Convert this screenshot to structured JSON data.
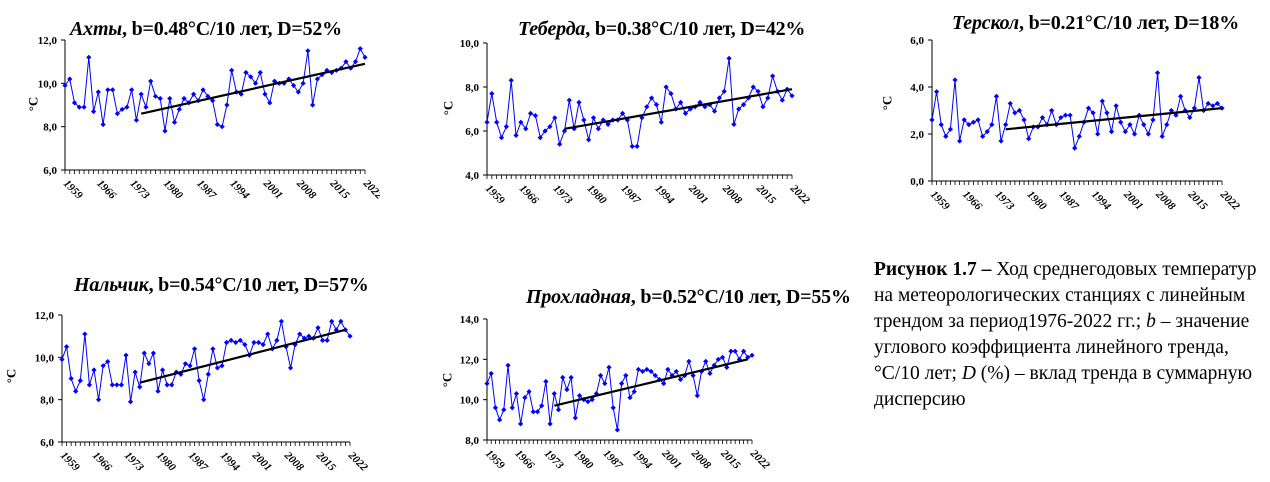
{
  "chart_data": [
    {
      "type": "line",
      "station": "Ахты",
      "b_label": "b=0.48°C/10 лет",
      "d_label": "D=52%",
      "ylabel": "°C",
      "yticks": [
        "6,0",
        "8,0",
        "10,0",
        "12,0"
      ],
      "ylim": [
        6,
        12
      ],
      "xticks": [
        "1959",
        "1966",
        "1973",
        "1980",
        "1987",
        "1994",
        "2001",
        "2008",
        "2015",
        "2022"
      ],
      "xlim": [
        1959,
        2022
      ],
      "series_color": "#0000ff",
      "trend_color": "#000000",
      "series": [
        {
          "values": [
            9.9,
            10.2,
            9.1,
            8.9,
            8.9,
            11.2,
            8.7,
            9.6,
            8.1,
            9.7,
            9.7,
            8.6,
            8.8,
            8.9,
            9.7,
            8.3,
            9.5,
            8.9,
            10.1,
            9.4,
            9.3,
            7.8,
            9.3,
            8.2,
            8.8,
            9.3,
            9.1,
            9.5,
            9.2,
            9.7,
            9.4,
            9.2,
            8.1,
            8.0,
            9.0,
            10.6,
            9.6,
            9.5,
            10.5,
            10.3,
            10.0,
            10.5,
            9.5,
            9.1,
            10.1,
            10.0,
            10.0,
            10.2,
            9.9,
            9.6,
            10.0,
            11.5,
            9.0,
            10.2,
            10.4,
            10.6,
            10.5,
            10.6,
            10.7,
            11.0,
            10.7,
            11.0,
            11.6,
            11.2
          ]
        }
      ],
      "trend": {
        "x": [
          1975,
          2022
        ],
        "y": [
          8.6,
          10.9
        ]
      }
    },
    {
      "type": "line",
      "station": "Теберда",
      "b_label": "b=0.38°C/10 лет",
      "d_label": "D=42%",
      "ylabel": "°C",
      "yticks": [
        "4,0",
        "6,0",
        "8,0",
        "10,0"
      ],
      "ylim": [
        4,
        10
      ],
      "xticks": [
        "1959",
        "1966",
        "1973",
        "1980",
        "1987",
        "1994",
        "2001",
        "2008",
        "2015",
        "2022"
      ],
      "xlim": [
        1959,
        2022
      ],
      "series_color": "#0000ff",
      "trend_color": "#000000",
      "series": [
        {
          "values": [
            6.4,
            7.7,
            6.4,
            5.7,
            6.2,
            8.3,
            5.8,
            6.4,
            6.1,
            6.8,
            6.7,
            5.7,
            6.0,
            6.2,
            6.6,
            5.4,
            6.0,
            7.4,
            6.1,
            7.3,
            6.5,
            5.6,
            6.6,
            6.1,
            6.5,
            6.3,
            6.5,
            6.5,
            6.8,
            6.5,
            5.3,
            5.3,
            6.6,
            7.1,
            7.5,
            7.2,
            6.4,
            8.0,
            7.7,
            7.0,
            7.3,
            6.8,
            7.0,
            7.1,
            7.3,
            7.1,
            7.2,
            6.9,
            7.5,
            7.8,
            9.3,
            6.3,
            7.0,
            7.2,
            7.5,
            8.0,
            7.8,
            7.1,
            7.5,
            8.5,
            7.8,
            7.4,
            7.9,
            7.6
          ]
        }
      ],
      "trend": {
        "x": [
          1975,
          2022
        ],
        "y": [
          6.1,
          7.9
        ]
      }
    },
    {
      "type": "line",
      "station": "Терскол",
      "b_label": "b=0.21°C/10 лет",
      "d_label": "D=18%",
      "ylabel": "°C",
      "yticks": [
        "0,0",
        "2,0",
        "4,0",
        "6,0"
      ],
      "ylim": [
        0,
        6
      ],
      "xticks": [
        "1959",
        "1966",
        "1973",
        "1980",
        "1987",
        "1994",
        "2001",
        "2008",
        "2015",
        "2022"
      ],
      "xlim": [
        1959,
        2022
      ],
      "series_color": "#0000ff",
      "trend_color": "#000000",
      "series": [
        {
          "values": [
            2.6,
            3.8,
            2.4,
            1.9,
            2.2,
            4.3,
            1.7,
            2.6,
            2.4,
            2.5,
            2.6,
            1.9,
            2.1,
            2.4,
            3.6,
            1.7,
            2.4,
            3.3,
            2.9,
            3.0,
            2.6,
            1.8,
            2.3,
            2.3,
            2.7,
            2.4,
            3.0,
            2.4,
            2.7,
            2.8,
            2.8,
            1.4,
            1.9,
            2.5,
            3.1,
            2.9,
            2.0,
            3.4,
            2.9,
            2.1,
            3.2,
            2.5,
            2.1,
            2.4,
            2.0,
            2.8,
            2.4,
            2.0,
            2.6,
            4.6,
            1.9,
            2.4,
            3.0,
            2.8,
            3.6,
            3.0,
            2.7,
            3.1,
            4.4,
            3.0,
            3.3,
            3.2,
            3.3,
            3.1
          ]
        }
      ],
      "trend": {
        "x": [
          1975,
          2022
        ],
        "y": [
          2.2,
          3.1
        ]
      }
    },
    {
      "type": "line",
      "station": "Нальчик",
      "b_label": "b=0.54°C/10 лет",
      "d_label": "D=57%",
      "ylabel": "°C",
      "yticks": [
        "6,0",
        "8,0",
        "10,0",
        "12,0"
      ],
      "ylim": [
        6,
        12
      ],
      "xticks": [
        "1959",
        "1966",
        "1973",
        "1980",
        "1987",
        "1994",
        "2001",
        "2008",
        "2015",
        "2022"
      ],
      "xlim": [
        1959,
        2022
      ],
      "series_color": "#0000ff",
      "trend_color": "#000000",
      "series": [
        {
          "values": [
            9.9,
            10.5,
            9.0,
            8.4,
            8.9,
            11.1,
            8.7,
            9.4,
            8.0,
            9.6,
            9.8,
            8.7,
            8.7,
            8.7,
            10.1,
            7.9,
            9.3,
            8.6,
            10.2,
            9.7,
            10.2,
            8.4,
            9.4,
            8.7,
            8.7,
            9.3,
            9.2,
            9.7,
            9.6,
            10.4,
            8.9,
            8.0,
            9.2,
            10.4,
            9.5,
            9.6,
            10.7,
            10.8,
            10.7,
            10.8,
            10.6,
            10.1,
            10.7,
            10.7,
            10.6,
            11.1,
            10.4,
            10.8,
            11.7,
            10.5,
            9.5,
            10.6,
            11.1,
            10.9,
            11.0,
            10.9,
            11.4,
            10.8,
            10.8,
            11.7,
            11.3,
            11.7,
            11.3,
            11.0
          ]
        }
      ],
      "trend": {
        "x": [
          1976,
          2021
        ],
        "y": [
          8.8,
          11.3
        ]
      }
    },
    {
      "type": "line",
      "station": "Прохладная",
      "b_label": "b=0.52°C/10 лет",
      "d_label": "D=55%",
      "ylabel": "°C",
      "yticks": [
        "8,0",
        "10,0",
        "12,0",
        "14,0"
      ],
      "ylim": [
        8,
        14
      ],
      "xticks": [
        "1959",
        "1966",
        "1973",
        "1980",
        "1987",
        "1994",
        "2001",
        "2008",
        "2015",
        "2022"
      ],
      "xlim": [
        1959,
        2022
      ],
      "series_color": "#0000ff",
      "trend_color": "#000000",
      "series": [
        {
          "values": [
            10.8,
            11.3,
            9.6,
            9.0,
            9.5,
            11.7,
            9.6,
            10.3,
            8.8,
            10.1,
            10.4,
            9.4,
            9.4,
            9.7,
            10.9,
            8.8,
            10.3,
            9.5,
            11.1,
            10.5,
            11.1,
            9.1,
            10.2,
            10.0,
            9.9,
            10.0,
            10.3,
            11.2,
            10.8,
            11.6,
            9.6,
            8.5,
            10.8,
            11.2,
            10.1,
            10.4,
            11.5,
            11.4,
            11.5,
            11.4,
            11.2,
            11.0,
            10.8,
            11.5,
            11.2,
            11.4,
            11.0,
            11.2,
            11.9,
            11.2,
            10.2,
            11.4,
            11.9,
            11.3,
            11.7,
            12.0,
            12.1,
            11.6,
            12.4,
            12.4,
            12.0,
            12.4,
            12.1,
            12.2
          ]
        }
      ],
      "trend": {
        "x": [
          1975,
          2021
        ],
        "y": [
          9.7,
          12.0
        ]
      }
    }
  ],
  "caption": {
    "label": "Рисунок 1.7",
    "dash": " – ",
    "t1": "Ход среднегодовых температур на метеорологических станциях с линейным трендом за период1976-2022 гг.; ",
    "b_sym": "b",
    "t2": " – значение углового коэффициента линейного тренда, °С/10 лет; ",
    "d_sym": "D",
    "t3": " (%) – вклад тренда в суммарную дисперсию"
  }
}
